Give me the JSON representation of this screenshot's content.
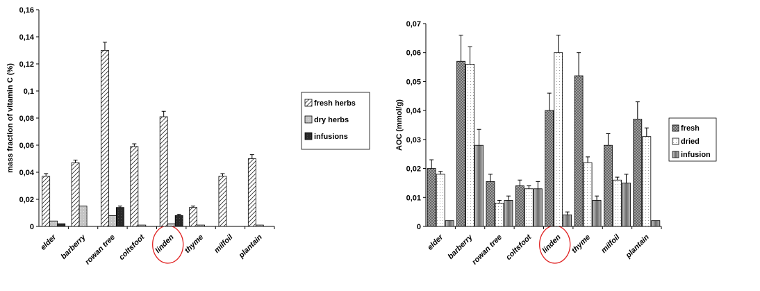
{
  "chart_data": [
    {
      "type": "bar",
      "title": "",
      "xlabel": "",
      "ylabel": "mass fraction of vitamin C (%)",
      "ylim": [
        0,
        0.16
      ],
      "yticks": [
        "0",
        "0,02",
        "0,04",
        "0,06",
        "0,08",
        "0,1",
        "0,12",
        "0,14",
        "0,16"
      ],
      "categories": [
        "elder",
        "barberry",
        "rowan tree",
        "coltsfoot",
        "linden",
        "thyme",
        "milfoil",
        "plantain"
      ],
      "highlighted_category": "linden",
      "legend_position": "right",
      "grid": false,
      "series": [
        {
          "name": "fresh herbs",
          "values": [
            0.037,
            0.047,
            0.13,
            0.059,
            0.081,
            0.014,
            0.037,
            0.05
          ],
          "errors": [
            0.002,
            0.002,
            0.006,
            0.002,
            0.004,
            0.001,
            0.002,
            0.003
          ],
          "color": "#ffffff",
          "pattern": "diag-hatch"
        },
        {
          "name": "dry herbs",
          "values": [
            0.004,
            0.015,
            0.008,
            0.001,
            0.002,
            0.001,
            0.0,
            0.001
          ],
          "errors": [
            0,
            0,
            0,
            0,
            0,
            0,
            0,
            0
          ],
          "color": "#c8c8c8",
          "pattern": "light"
        },
        {
          "name": "infusions",
          "values": [
            0.002,
            0.0,
            0.014,
            0.0,
            0.008,
            0.0,
            0.0,
            0.0
          ],
          "errors": [
            0,
            0,
            0.001,
            0,
            0.001,
            0,
            0,
            0
          ],
          "color": "#303030",
          "pattern": "dark"
        }
      ]
    },
    {
      "type": "bar",
      "title": "",
      "xlabel": "",
      "ylabel": "AOC (mmol/g)",
      "ylim": [
        0,
        0.07
      ],
      "yticks": [
        "0",
        "0,01",
        "0,02",
        "0,03",
        "0,04",
        "0,05",
        "0,06",
        "0,07"
      ],
      "categories": [
        "elder",
        "barberry",
        "rowan tree",
        "coltsfoot",
        "linden",
        "thyme",
        "milfoil",
        "plantain"
      ],
      "highlighted_category": "linden",
      "legend_position": "right",
      "grid": false,
      "series": [
        {
          "name": "fresh",
          "values": [
            0.02,
            0.057,
            0.0155,
            0.014,
            0.04,
            0.052,
            0.028,
            0.037
          ],
          "errors": [
            0.003,
            0.009,
            0.0025,
            0.002,
            0.006,
            0.008,
            0.004,
            0.006
          ],
          "color": "#a0a0a0",
          "pattern": "crosshatch"
        },
        {
          "name": "dried",
          "values": [
            0.018,
            0.056,
            0.008,
            0.013,
            0.06,
            0.022,
            0.016,
            0.031
          ],
          "errors": [
            0.001,
            0.006,
            0.001,
            0.001,
            0.006,
            0.002,
            0.001,
            0.003
          ],
          "color": "#ffffff",
          "pattern": "dots"
        },
        {
          "name": "infusion",
          "values": [
            0.002,
            0.028,
            0.009,
            0.013,
            0.004,
            0.009,
            0.015,
            0.002
          ],
          "errors": [
            0,
            0.0055,
            0.0015,
            0.0025,
            0.001,
            0.0015,
            0.003,
            0
          ],
          "color": "#808080",
          "pattern": "gradient"
        }
      ]
    }
  ]
}
